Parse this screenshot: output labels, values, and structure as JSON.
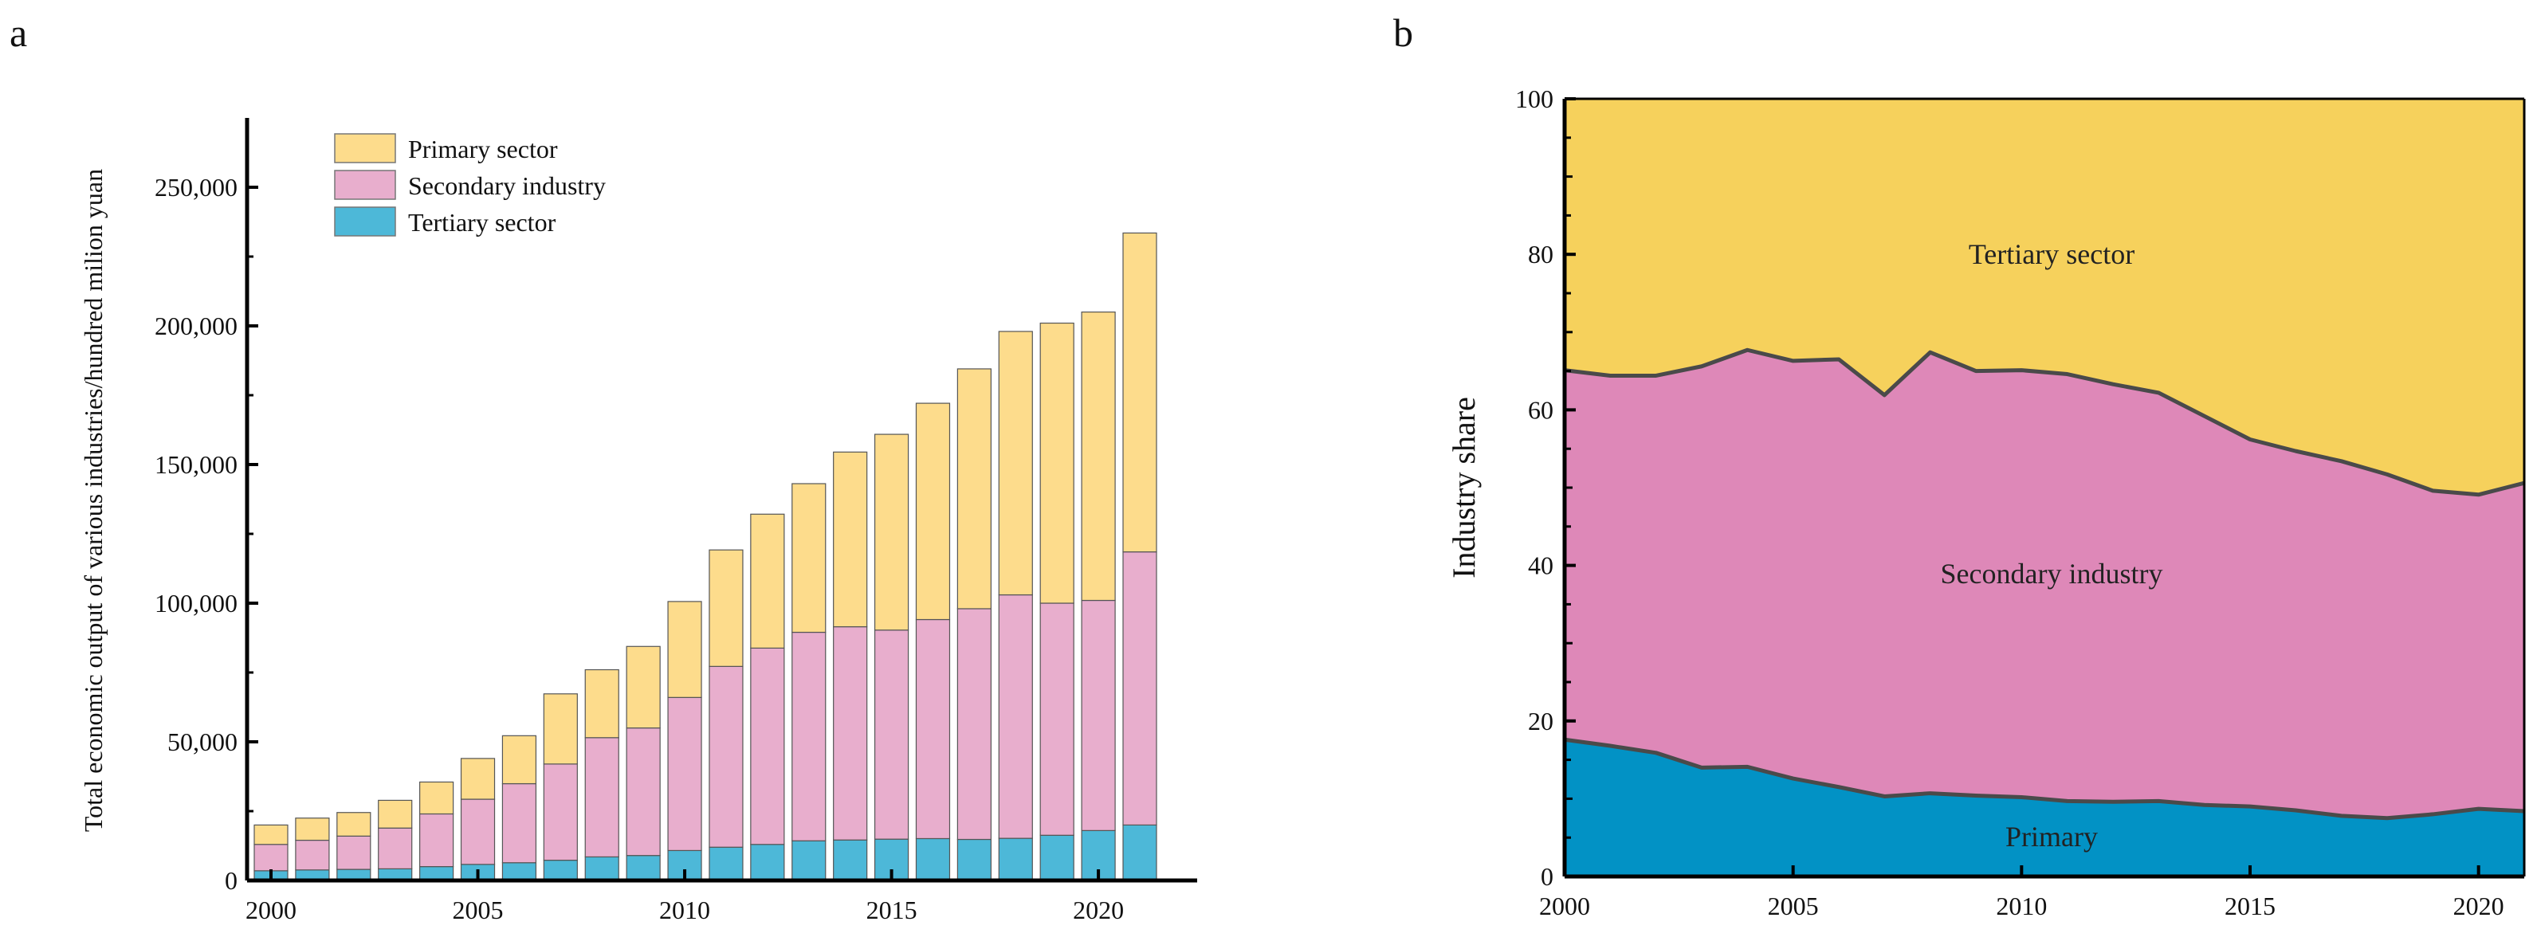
{
  "chart_data": [
    {
      "panel_label": "a",
      "type": "bar",
      "stacked": true,
      "ylabel": "Total economic output of various industries/hundred milion yuan",
      "xlabel": "",
      "ylim": [
        0,
        275000
      ],
      "yticks": [
        0,
        50000,
        100000,
        150000,
        200000,
        250000
      ],
      "ytick_labels": [
        "0",
        "50,000",
        "100,000",
        "150,000",
        "200,000",
        "250,000"
      ],
      "xticks": [
        2000,
        2005,
        2010,
        2015,
        2020
      ],
      "xtick_labels": [
        "2000",
        "2005",
        "2010",
        "2015",
        "2020"
      ],
      "legend_position": "top-left",
      "categories": [
        2000,
        2001,
        2002,
        2003,
        2004,
        2005,
        2006,
        2007,
        2008,
        2009,
        2010,
        2011,
        2012,
        2013,
        2014,
        2015,
        2016,
        2017,
        2018,
        2019,
        2020,
        2021
      ],
      "series": [
        {
          "name": "Tertiary sector",
          "color": "#4db8d8",
          "values": [
            3500,
            3800,
            4000,
            4200,
            5000,
            5800,
            6400,
            7300,
            8500,
            9000,
            10800,
            12000,
            13000,
            14300,
            14600,
            14900,
            15100,
            14800,
            15200,
            16300,
            18000,
            20000
          ]
        },
        {
          "name": "Secondary industry",
          "color": "#e8aecd",
          "values": [
            9500,
            10700,
            12000,
            14700,
            19000,
            23500,
            28500,
            34700,
            43000,
            46000,
            55200,
            65200,
            70800,
            75200,
            76900,
            75400,
            79000,
            83200,
            87800,
            83700,
            83000,
            98500
          ]
        },
        {
          "name": "Primary sector",
          "color": "#fddc8c",
          "values": [
            7000,
            8000,
            8500,
            10000,
            11500,
            14700,
            17300,
            25300,
            24500,
            29400,
            34600,
            42000,
            48300,
            53600,
            63000,
            70600,
            78000,
            86500,
            95000,
            101000,
            104000,
            115000
          ]
        }
      ]
    },
    {
      "panel_label": "b",
      "type": "area",
      "stacked": true,
      "ylabel": "Industry share",
      "xlabel": "",
      "ylim": [
        0,
        100
      ],
      "yticks": [
        0,
        20,
        40,
        60,
        80,
        100
      ],
      "ytick_labels": [
        "0",
        "20",
        "40",
        "60",
        "80",
        "100"
      ],
      "xticks": [
        2000,
        2005,
        2010,
        2015,
        2020
      ],
      "xtick_labels": [
        "2000",
        "2005",
        "2010",
        "2015",
        "2020"
      ],
      "x": [
        2000,
        2001,
        2002,
        2003,
        2004,
        2005,
        2006,
        2007,
        2008,
        2009,
        2010,
        2011,
        2012,
        2013,
        2014,
        2015,
        2016,
        2017,
        2018,
        2019,
        2020,
        2021
      ],
      "series": [
        {
          "name": "Primary",
          "color": "#0292c5",
          "values": [
            17.6,
            16.8,
            15.9,
            14.0,
            14.1,
            12.6,
            11.5,
            10.3,
            10.7,
            10.4,
            10.2,
            9.7,
            9.6,
            9.7,
            9.2,
            9.0,
            8.5,
            7.8,
            7.5,
            8.0,
            8.7,
            8.4
          ]
        },
        {
          "name": "Secondary industry",
          "color": "#de88b8",
          "values": [
            47.5,
            47.6,
            48.5,
            51.6,
            53.6,
            53.7,
            55.0,
            51.6,
            56.7,
            54.6,
            54.9,
            54.9,
            53.7,
            52.5,
            50.0,
            47.2,
            46.2,
            45.6,
            44.2,
            41.6,
            40.4,
            42.2
          ]
        },
        {
          "name": "Tertiary sector",
          "color": "#f6d15c",
          "values": [
            34.9,
            35.6,
            35.6,
            34.4,
            32.3,
            33.7,
            33.5,
            38.1,
            32.6,
            35.0,
            34.9,
            35.4,
            36.7,
            37.8,
            40.8,
            43.8,
            45.3,
            46.6,
            48.3,
            50.4,
            50.9,
            49.4
          ]
        }
      ],
      "area_labels": [
        "Tertiary sector",
        "Secondary industry",
        "Primary"
      ]
    }
  ]
}
